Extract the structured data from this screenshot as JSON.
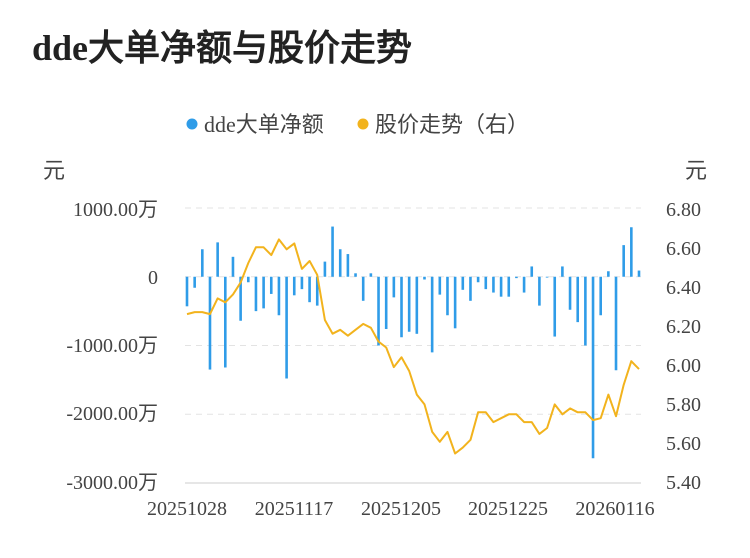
{
  "title": "dde大单净额与股价走势",
  "legend": {
    "items": [
      {
        "label": "dde大单净额",
        "color": "#2f9ce8"
      },
      {
        "label": "股价走势（右）",
        "color": "#f2b31d"
      }
    ]
  },
  "axes": {
    "left_unit": "元",
    "right_unit": "元",
    "left_ticks": [
      "1000.00万",
      "0",
      "-1000.00万",
      "-2000.00万",
      "-3000.00万"
    ],
    "right_ticks": [
      "6.80",
      "6.60",
      "6.40",
      "6.20",
      "6.00",
      "5.80",
      "5.60",
      "5.40"
    ],
    "x_ticks": [
      "20251028",
      "20251117",
      "20251205",
      "20251225",
      "20260116"
    ]
  },
  "chart_data": {
    "type": "bar+line",
    "title": "dde大单净额与股价走势",
    "ylabel_left": "元",
    "ylabel_right": "元",
    "ylim_left": [
      -3000,
      1000
    ],
    "ylim_right": [
      5.4,
      6.8
    ],
    "grid": true,
    "legend_position": "top-center",
    "x_tick_labels": [
      "20251028",
      "20251117",
      "20251205",
      "20251225",
      "20260116"
    ],
    "x_tick_positions": [
      0,
      14,
      28,
      42,
      56
    ],
    "series": [
      {
        "name": "dde大单净额",
        "kind": "bar",
        "axis": "left",
        "unit": "万元",
        "color": "#2f9ce8",
        "values": [
          -430,
          -160,
          400,
          -1350,
          500,
          -1320,
          290,
          -640,
          -80,
          -500,
          -460,
          -250,
          -560,
          -1480,
          -270,
          -180,
          -370,
          -420,
          220,
          730,
          400,
          330,
          50,
          -350,
          50,
          -1000,
          -760,
          -300,
          -880,
          -800,
          -830,
          -40,
          -1100,
          -260,
          -560,
          -750,
          -190,
          -350,
          -80,
          -180,
          -230,
          -290,
          -290,
          -20,
          -230,
          150,
          -420,
          0,
          -870,
          150,
          -480,
          -660,
          -1000,
          -2640,
          -560,
          80,
          -1360,
          460,
          720,
          90
        ]
      },
      {
        "name": "股价走势（右）",
        "kind": "line",
        "axis": "right",
        "color": "#f2b31d",
        "values": [
          6.26,
          6.27,
          6.27,
          6.26,
          6.34,
          6.32,
          6.36,
          6.42,
          6.52,
          6.6,
          6.6,
          6.56,
          6.64,
          6.59,
          6.62,
          6.49,
          6.53,
          6.46,
          6.23,
          6.16,
          6.18,
          6.15,
          6.18,
          6.21,
          6.19,
          6.12,
          6.09,
          5.99,
          6.04,
          5.97,
          5.85,
          5.8,
          5.66,
          5.61,
          5.66,
          5.55,
          5.58,
          5.62,
          5.76,
          5.76,
          5.71,
          5.73,
          5.75,
          5.75,
          5.71,
          5.71,
          5.65,
          5.68,
          5.8,
          5.75,
          5.78,
          5.76,
          5.76,
          5.72,
          5.73,
          5.85,
          5.74,
          5.9,
          6.02,
          5.98
        ]
      }
    ]
  }
}
